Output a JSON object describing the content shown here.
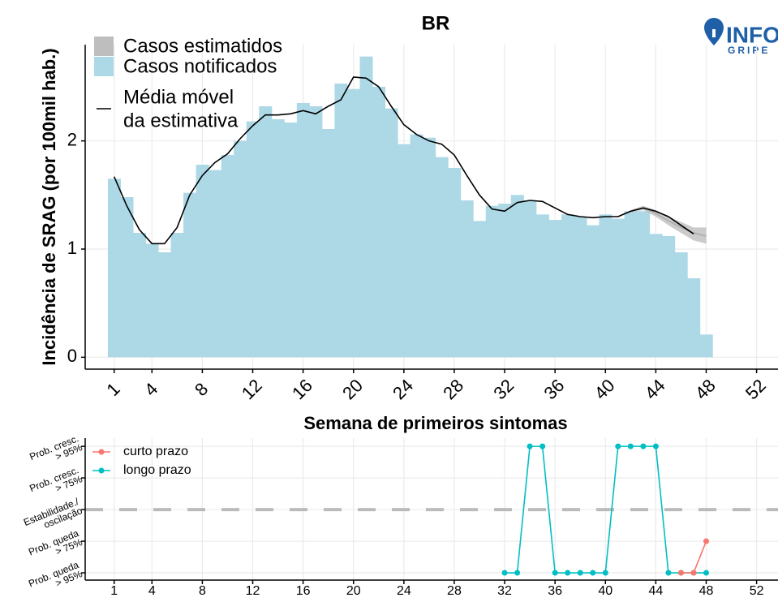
{
  "chart_data": [
    {
      "type": "bar",
      "title": "BR",
      "xlabel": "Semana de primeiros sintomas",
      "ylabel": "Incidência de SRAG (por 100mil hab.)",
      "x": [
        1,
        2,
        3,
        4,
        5,
        6,
        7,
        8,
        9,
        10,
        11,
        12,
        13,
        14,
        15,
        16,
        17,
        18,
        19,
        20,
        21,
        22,
        23,
        24,
        25,
        26,
        27,
        28,
        29,
        30,
        31,
        32,
        33,
        34,
        35,
        36,
        37,
        38,
        39,
        40,
        41,
        42,
        43,
        44,
        45,
        46,
        47,
        48
      ],
      "series": [
        {
          "name": "Casos notificados",
          "color": "#add8e6",
          "values": [
            1.65,
            1.48,
            1.15,
            1.05,
            0.97,
            1.15,
            1.52,
            1.78,
            1.73,
            1.87,
            2.0,
            2.18,
            2.32,
            2.2,
            2.17,
            2.35,
            2.32,
            2.11,
            2.53,
            2.48,
            2.78,
            2.5,
            2.3,
            1.97,
            2.06,
            2.03,
            1.85,
            1.75,
            1.45,
            1.26,
            1.4,
            1.42,
            1.5,
            1.45,
            1.32,
            1.27,
            1.32,
            1.3,
            1.22,
            1.32,
            1.28,
            1.35,
            1.35,
            1.14,
            1.12,
            0.97,
            0.73,
            0.21
          ]
        }
      ],
      "estimate": {
        "name": "Casos estimatidos",
        "color": "#bebebe",
        "x": [
          41,
          42,
          43,
          44,
          45,
          46,
          47,
          48
        ],
        "values": [
          1.3,
          1.35,
          1.38,
          1.33,
          1.26,
          1.2,
          1.15,
          1.12
        ],
        "lower": [
          1.3,
          1.34,
          1.36,
          1.3,
          1.22,
          1.15,
          1.08,
          1.05
        ],
        "upper": [
          1.3,
          1.36,
          1.4,
          1.36,
          1.3,
          1.25,
          1.2,
          1.2
        ]
      },
      "moving_average": {
        "name": "Média móvel\nda estimativa",
        "color": "#000000",
        "x": [
          1,
          2,
          3,
          4,
          5,
          6,
          7,
          8,
          9,
          10,
          11,
          12,
          13,
          14,
          15,
          16,
          17,
          18,
          19,
          20,
          21,
          22,
          23,
          24,
          25,
          26,
          27,
          28,
          29,
          30,
          31,
          32,
          33,
          34,
          35,
          36,
          37,
          38,
          39,
          40,
          41,
          42,
          43,
          44,
          45,
          46,
          47
        ],
        "values": [
          1.67,
          1.4,
          1.18,
          1.05,
          1.05,
          1.2,
          1.5,
          1.68,
          1.8,
          1.88,
          2.02,
          2.14,
          2.24,
          2.24,
          2.25,
          2.28,
          2.25,
          2.32,
          2.38,
          2.59,
          2.58,
          2.5,
          2.32,
          2.15,
          2.06,
          2.0,
          1.97,
          1.87,
          1.68,
          1.5,
          1.37,
          1.35,
          1.43,
          1.45,
          1.44,
          1.38,
          1.32,
          1.3,
          1.29,
          1.3,
          1.3,
          1.35,
          1.38,
          1.35,
          1.3,
          1.22,
          1.14
        ]
      },
      "xlim": [
        -1.3,
        53.7
      ],
      "xticks": [
        1,
        4,
        8,
        12,
        16,
        20,
        24,
        28,
        32,
        36,
        40,
        44,
        48,
        52
      ],
      "ylim": [
        -0.11,
        2.89
      ],
      "yticks": [
        0,
        1,
        2
      ],
      "grid": true,
      "logo": {
        "text": "INFO",
        "subtext": "GRIPE"
      }
    },
    {
      "type": "line",
      "series": [
        {
          "name": "curto prazo",
          "color": "#f8766d",
          "x": [
            46,
            47,
            48
          ],
          "values": [
            -2,
            -2,
            -1
          ]
        },
        {
          "name": "longo prazo",
          "color": "#00bfc4",
          "x": [
            32,
            33,
            34,
            35,
            36,
            37,
            38,
            39,
            40,
            41,
            42,
            43,
            44,
            45,
            46,
            47,
            48
          ],
          "values": [
            -2,
            -2,
            2,
            2,
            -2,
            -2,
            -2,
            -2,
            -2,
            2,
            2,
            2,
            2,
            -2,
            -2,
            -2,
            -2
          ]
        }
      ],
      "hline": 0,
      "xlim": [
        -1.3,
        53.7
      ],
      "xticks": [
        1,
        4,
        8,
        12,
        16,
        20,
        24,
        28,
        32,
        36,
        40,
        44,
        48,
        52
      ],
      "ylim": [
        -2.23,
        2.26
      ],
      "yticks": [
        {
          "value": -2,
          "label": "Prob. queda\n> 95%"
        },
        {
          "value": -1,
          "label": "Prob. queda\n> 75%"
        },
        {
          "value": 0,
          "label": "Estabilidade./\noscilação"
        },
        {
          "value": 1,
          "label": "Prob. cresc.\n> 75%"
        },
        {
          "value": 2,
          "label": "Prob. cresc.\n> 95%"
        }
      ],
      "grid": true
    }
  ]
}
